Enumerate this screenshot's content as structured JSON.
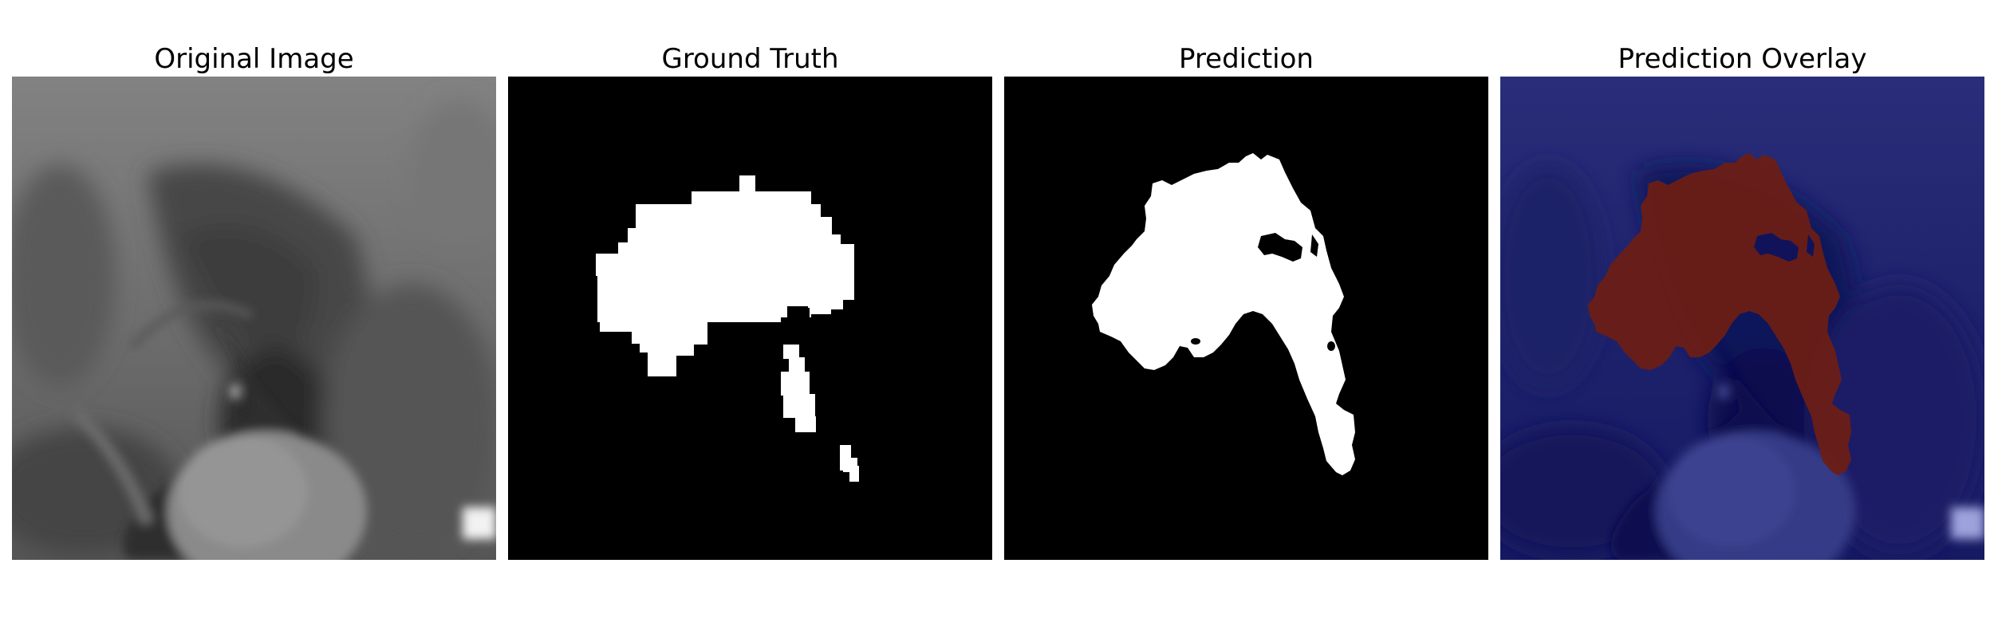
{
  "figure": {
    "panels": [
      {
        "title": "Original Image"
      },
      {
        "title": "Ground Truth"
      },
      {
        "title": "Prediction"
      },
      {
        "title": "Prediction Overlay"
      }
    ]
  },
  "colors": {
    "mask_foreground": "#ffffff",
    "mask_background": "#000000",
    "overlay_background": "#0f1260",
    "overlay_foreground": "#6b1e15"
  }
}
